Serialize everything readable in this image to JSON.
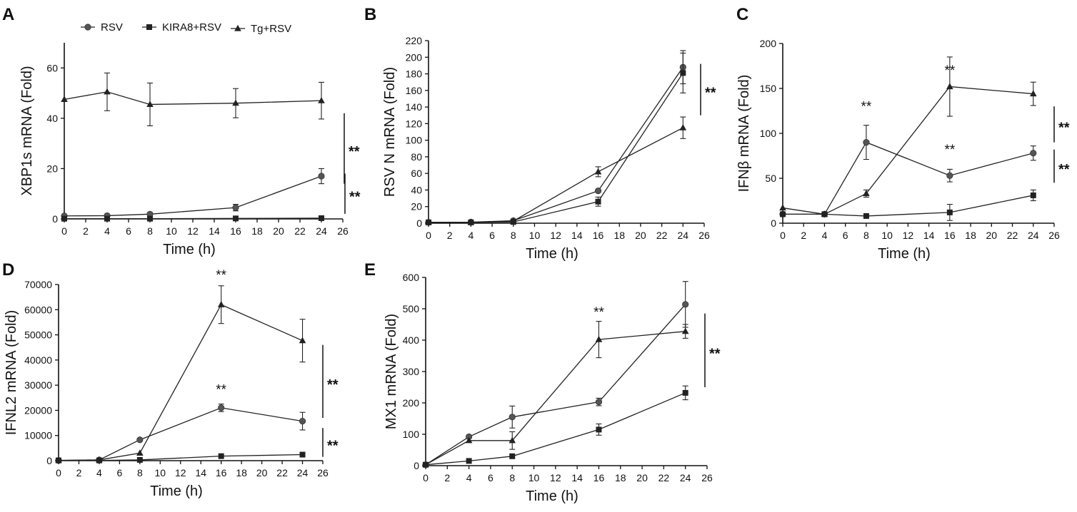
{
  "legend": [
    {
      "name": "RSV",
      "marker": "circle"
    },
    {
      "name": "KIRA8+RSV",
      "marker": "square"
    },
    {
      "name": "Tg+RSV",
      "marker": "triangle"
    }
  ],
  "chart_data": [
    {
      "panel": "A",
      "type": "line",
      "xlabel": "Time (h)",
      "ylabel": "XBP1s mRNA (Fold)",
      "xlim": [
        0,
        26
      ],
      "ylim": [
        0,
        70
      ],
      "xticks": [
        "0",
        "2",
        "4",
        "6",
        "8",
        "10",
        "12",
        "14",
        "16",
        "18",
        "20",
        "22",
        "24",
        "26"
      ],
      "yticks": [
        "0",
        "20",
        "40",
        "60"
      ],
      "x": [
        0,
        4,
        8,
        16,
        24
      ],
      "series": [
        {
          "name": "RSV",
          "marker": "circle",
          "values": [
            1.2,
            1.3,
            1.9,
            4.5,
            17
          ],
          "errors": [
            0.3,
            0.3,
            0.4,
            1.3,
            3.0
          ]
        },
        {
          "name": "KIRA8+RSV",
          "marker": "square",
          "values": [
            0.1,
            0.1,
            0.1,
            0.2,
            0.3
          ],
          "errors": [
            0,
            0,
            0,
            0,
            0
          ]
        },
        {
          "name": "Tg+RSV",
          "marker": "triangle",
          "values": [
            47.5,
            50.5,
            45.5,
            46,
            47
          ],
          "errors": [
            0,
            7.5,
            8.5,
            5.8,
            7.3
          ]
        }
      ],
      "significance": [
        {
          "label": "**",
          "y_range": [
            42,
            14
          ]
        },
        {
          "label": "**",
          "y_range": [
            18,
            2
          ]
        }
      ],
      "annotations": []
    },
    {
      "panel": "B",
      "type": "line",
      "xlabel": "Time (h)",
      "ylabel": "RSV N mRNA (Fold)",
      "xlim": [
        0,
        26
      ],
      "ylim": [
        0,
        220
      ],
      "xticks": [
        "0",
        "2",
        "4",
        "6",
        "8",
        "10",
        "12",
        "14",
        "16",
        "18",
        "20",
        "22",
        "24",
        "26"
      ],
      "yticks": [
        "0",
        "20",
        "40",
        "60",
        "80",
        "100",
        "120",
        "140",
        "160",
        "180",
        "200",
        "220"
      ],
      "x": [
        0,
        4,
        8,
        16,
        24
      ],
      "series": [
        {
          "name": "RSV",
          "marker": "circle",
          "values": [
            1,
            1.3,
            3,
            39,
            188
          ],
          "errors": [
            0,
            0,
            0,
            0,
            20
          ]
        },
        {
          "name": "KIRA8+RSV",
          "marker": "square",
          "values": [
            1,
            1,
            1.5,
            26,
            181
          ],
          "errors": [
            0,
            0,
            0,
            5.5,
            24
          ]
        },
        {
          "name": "Tg+RSV",
          "marker": "triangle",
          "values": [
            1,
            1,
            2.5,
            62,
            115
          ],
          "errors": [
            0,
            0,
            0,
            6,
            13
          ]
        }
      ],
      "significance": [
        {
          "label": "**",
          "y_range": [
            192,
            130
          ]
        }
      ],
      "annotations": []
    },
    {
      "panel": "C",
      "type": "line",
      "xlabel": "Time (h)",
      "ylabel": "IFNβ mRNA (Fold)",
      "xlim": [
        0,
        26
      ],
      "ylim": [
        0,
        200
      ],
      "xticks": [
        "0",
        "2",
        "4",
        "6",
        "8",
        "10",
        "12",
        "14",
        "16",
        "18",
        "20",
        "22",
        "24",
        "26"
      ],
      "yticks": [
        "0",
        "50",
        "100",
        "150",
        "200"
      ],
      "x": [
        0,
        4,
        8,
        16,
        24
      ],
      "series": [
        {
          "name": "RSV",
          "marker": "circle",
          "values": [
            10,
            10,
            90,
            53,
            78
          ],
          "errors": [
            0,
            0,
            19,
            7,
            8
          ]
        },
        {
          "name": "KIRA8+RSV",
          "marker": "square",
          "values": [
            10,
            10,
            8,
            12,
            31
          ],
          "errors": [
            0,
            0,
            0,
            9,
            6
          ]
        },
        {
          "name": "Tg+RSV",
          "marker": "triangle",
          "values": [
            17,
            10,
            33,
            152,
            144
          ],
          "errors": [
            0,
            0,
            4,
            33,
            13
          ]
        }
      ],
      "significance": [
        {
          "label": "**",
          "y_range": [
            130,
            90
          ]
        },
        {
          "label": "**",
          "y_range": [
            82,
            45
          ]
        }
      ],
      "annotations": [
        {
          "text": "**",
          "x": 8,
          "y": 125
        },
        {
          "text": "**",
          "x": 16,
          "y": 165
        },
        {
          "text": "**",
          "x": 16,
          "y": 77
        }
      ]
    },
    {
      "panel": "D",
      "type": "line",
      "xlabel": "Time (h)",
      "ylabel": "IFNL2 mRNA (Fold)",
      "xlim": [
        0,
        26
      ],
      "ylim": [
        0,
        70000
      ],
      "xticks": [
        "0",
        "2",
        "4",
        "6",
        "8",
        "10",
        "12",
        "14",
        "16",
        "18",
        "20",
        "22",
        "24",
        "26"
      ],
      "yticks": [
        "0",
        "10000",
        "20000",
        "30000",
        "40000",
        "50000",
        "60000",
        "70000"
      ],
      "x": [
        0,
        4,
        8,
        16,
        24
      ],
      "series": [
        {
          "name": "RSV",
          "marker": "circle",
          "values": [
            100,
            300,
            8300,
            21000,
            15700
          ],
          "errors": [
            0,
            0,
            0,
            1500,
            3500
          ]
        },
        {
          "name": "KIRA8+RSV",
          "marker": "square",
          "values": [
            100,
            100,
            300,
            1800,
            2400
          ],
          "errors": [
            0,
            0,
            0,
            0,
            0
          ]
        },
        {
          "name": "Tg+RSV",
          "marker": "triangle",
          "values": [
            100,
            300,
            3000,
            62000,
            47700
          ],
          "errors": [
            0,
            0,
            0,
            7500,
            8500
          ]
        }
      ],
      "significance": [
        {
          "label": "**",
          "y_range": [
            46000,
            17000
          ]
        },
        {
          "label": "**",
          "y_range": [
            13000,
            1500
          ]
        }
      ],
      "annotations": [
        {
          "text": "**",
          "x": 16,
          "y": 72000
        },
        {
          "text": "**",
          "x": 16,
          "y": 26500
        }
      ]
    },
    {
      "panel": "E",
      "type": "line",
      "xlabel": "Time (h)",
      "ylabel": "MX1 mRNA (Fold)",
      "xlim": [
        0,
        26
      ],
      "ylim": [
        0,
        600
      ],
      "xticks": [
        "0",
        "2",
        "4",
        "6",
        "8",
        "10",
        "12",
        "14",
        "16",
        "18",
        "20",
        "22",
        "24",
        "26"
      ],
      "yticks": [
        "0",
        "100",
        "200",
        "300",
        "400",
        "500",
        "600"
      ],
      "x": [
        0,
        4,
        8,
        16,
        24
      ],
      "series": [
        {
          "name": "RSV",
          "marker": "circle",
          "values": [
            3,
            92,
            155,
            203,
            514
          ],
          "errors": [
            0,
            0,
            35,
            12,
            73
          ]
        },
        {
          "name": "KIRA8+RSV",
          "marker": "square",
          "values": [
            3,
            15,
            30,
            115,
            232
          ],
          "errors": [
            0,
            0,
            0,
            18,
            22
          ]
        },
        {
          "name": "Tg+RSV",
          "marker": "triangle",
          "values": [
            3,
            80,
            80,
            402,
            428
          ],
          "errors": [
            0,
            0,
            28,
            58,
            22
          ]
        }
      ],
      "significance": [
        {
          "label": "**",
          "y_range": [
            485,
            250
          ]
        }
      ],
      "annotations": [
        {
          "text": "**",
          "x": 16,
          "y": 475
        }
      ]
    }
  ]
}
